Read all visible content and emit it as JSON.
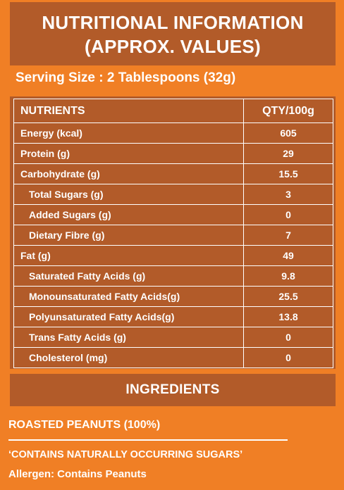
{
  "header": {
    "line1": "NUTRITIONAL INFORMATION",
    "line2": "(APPROX. VALUES)"
  },
  "serving_size": "Serving Size : 2 Tablespoons (32g)",
  "table": {
    "col_nutrients": "NUTRIENTS",
    "col_qty": "QTY/100g",
    "rows": [
      {
        "name": "Energy (kcal)",
        "qty": "605",
        "sub": false
      },
      {
        "name": "Protein (g)",
        "qty": "29",
        "sub": false
      },
      {
        "name": "Carbohydrate (g)",
        "qty": "15.5",
        "sub": false
      },
      {
        "name": "Total Sugars (g)",
        "qty": "3",
        "sub": true
      },
      {
        "name": "Added Sugars (g)",
        "qty": "0",
        "sub": true
      },
      {
        "name": "Dietary Fibre (g)",
        "qty": "7",
        "sub": true
      },
      {
        "name": "Fat (g)",
        "qty": "49",
        "sub": false
      },
      {
        "name": "Saturated Fatty Acids (g)",
        "qty": "9.8",
        "sub": true
      },
      {
        "name": "Monounsaturated Fatty Acids(g)",
        "qty": "25.5",
        "sub": true
      },
      {
        "name": "Polyunsaturated Fatty Acids(g)",
        "qty": "13.8",
        "sub": true
      },
      {
        "name": "Trans Fatty Acids (g)",
        "qty": "0",
        "sub": true
      },
      {
        "name": "Cholesterol (mg)",
        "qty": "0",
        "sub": true
      }
    ]
  },
  "ingredients": {
    "heading": "INGREDIENTS",
    "text": "ROASTED PEANUTS (100%)",
    "note": "‘CONTAINS NATURALLY OCCURRING SUGARS’",
    "allergen": "Allergen: Contains Peanuts"
  },
  "colors": {
    "background": "#f07f25",
    "panel": "#b25b29",
    "text": "#ffffff"
  }
}
